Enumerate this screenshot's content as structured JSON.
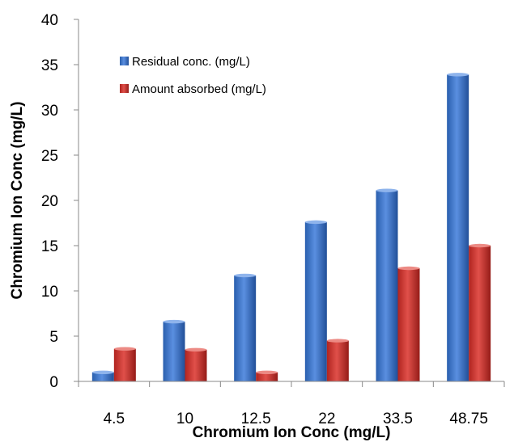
{
  "chart_data": {
    "type": "bar",
    "categories": [
      "4.5",
      "10",
      "12.5",
      "22",
      "33.5",
      "48.75"
    ],
    "series": [
      {
        "name": "Residual  conc. (mg/L)",
        "values": [
          1.0,
          6.6,
          11.7,
          17.6,
          21.1,
          33.9
        ],
        "color": "#2f6bc4"
      },
      {
        "name": "Amount absorbed (mg/L)",
        "values": [
          3.6,
          3.5,
          1.0,
          4.5,
          12.5,
          15.0
        ],
        "color": "#c8302a"
      }
    ],
    "title": "",
    "xlabel": "Chromium Ion Conc (mg/L)",
    "ylabel": "Chromium Ion Conc (mg/L)",
    "ylim": [
      0,
      40
    ],
    "yticks": [
      "0",
      "5",
      "10",
      "15",
      "20",
      "25",
      "30",
      "35",
      "40"
    ],
    "grid": false,
    "legend_position": "top-left"
  }
}
